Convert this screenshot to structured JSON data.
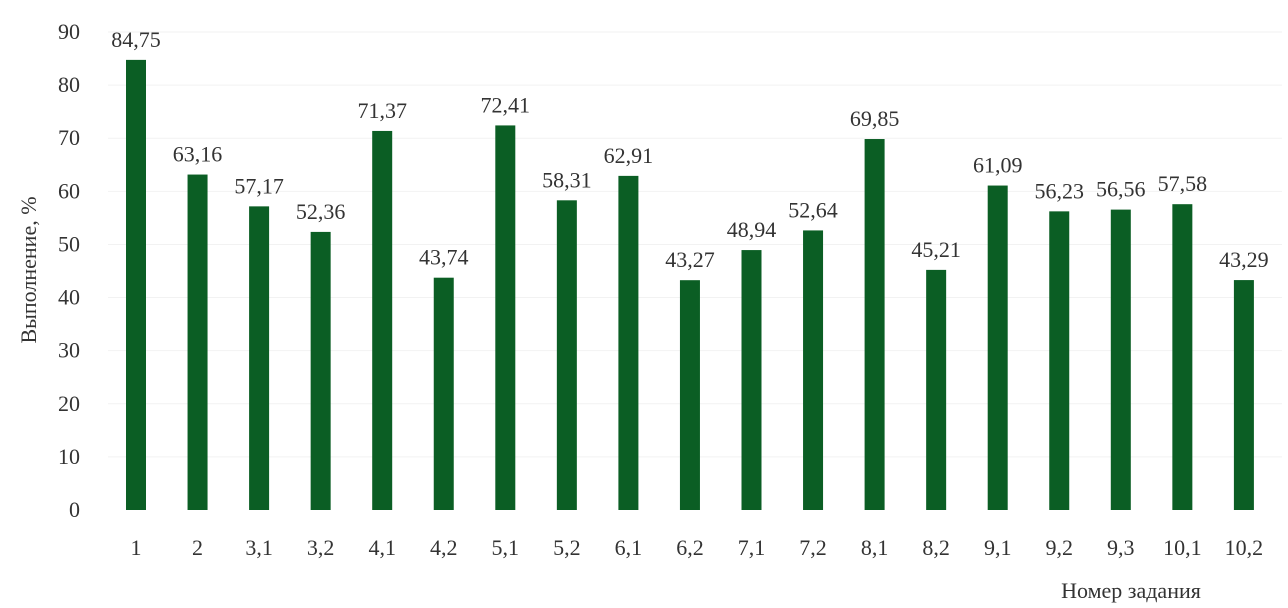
{
  "chart_data": {
    "type": "bar",
    "title": "",
    "xlabel": "Номер задания",
    "ylabel": "Выполнение, %",
    "ylim": [
      0,
      90
    ],
    "yticks": [
      "0",
      "10",
      "20",
      "30",
      "40",
      "50",
      "60",
      "70",
      "80",
      "90"
    ],
    "grid": true,
    "bar_color": "#0b5e24",
    "categories": [
      "1",
      "2",
      "3,1",
      "3,2",
      "4,1",
      "4,2",
      "5,1",
      "5,2",
      "6,1",
      "6,2",
      "7,1",
      "7,2",
      "8,1",
      "8,2",
      "9,1",
      "9,2",
      "9,3",
      "10,1",
      "10,2"
    ],
    "values": [
      84.75,
      63.16,
      57.17,
      52.36,
      71.37,
      43.74,
      72.41,
      58.31,
      62.91,
      43.27,
      48.94,
      52.64,
      69.85,
      45.21,
      61.09,
      56.23,
      56.56,
      57.58,
      43.29
    ],
    "value_labels": [
      "84,75",
      "63,16",
      "57,17",
      "52,36",
      "71,37",
      "43,74",
      "72,41",
      "58,31",
      "62,91",
      "43,27",
      "48,94",
      "52,64",
      "69,85",
      "45,21",
      "61,09",
      "56,23",
      "56,56",
      "57,58",
      "43,29"
    ]
  }
}
